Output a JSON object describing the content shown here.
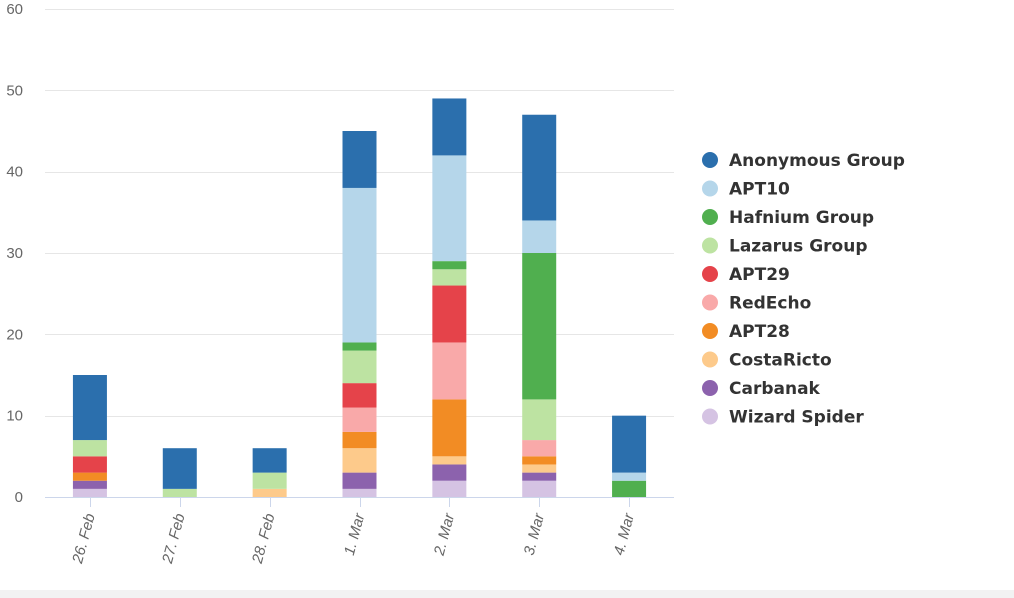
{
  "chart_data": {
    "type": "bar",
    "stacked": true,
    "categories": [
      "26. Feb",
      "27. Feb",
      "28. Feb",
      "1. Mar",
      "2. Mar",
      "3. Mar",
      "4. Mar"
    ],
    "ylim": [
      0,
      60
    ],
    "yticks": [
      0,
      10,
      20,
      30,
      40,
      50,
      60
    ],
    "grid": true,
    "legend_position": "right",
    "series": [
      {
        "name": "Wizard Spider",
        "color": "#d5c3e3",
        "values": [
          1,
          0,
          0,
          1,
          2,
          2,
          0
        ]
      },
      {
        "name": "Carbanak",
        "color": "#8c62ad",
        "values": [
          1,
          0,
          0,
          2,
          2,
          1,
          0
        ]
      },
      {
        "name": "CostaRicto",
        "color": "#fdca8b",
        "values": [
          0,
          0,
          1,
          3,
          1,
          1,
          0
        ]
      },
      {
        "name": "APT28",
        "color": "#f28c24",
        "values": [
          1,
          0,
          0,
          2,
          7,
          1,
          0
        ]
      },
      {
        "name": "RedEcho",
        "color": "#f9a9a9",
        "values": [
          0,
          0,
          0,
          3,
          7,
          2,
          0
        ]
      },
      {
        "name": "APT29",
        "color": "#e5434a",
        "values": [
          2,
          0,
          0,
          3,
          7,
          0,
          0
        ]
      },
      {
        "name": "Lazarus Group",
        "color": "#bde3a2",
        "values": [
          2,
          1,
          2,
          4,
          2,
          5,
          0
        ]
      },
      {
        "name": "Hafnium Group",
        "color": "#50af4f",
        "values": [
          0,
          0,
          0,
          1,
          1,
          18,
          2
        ]
      },
      {
        "name": "APT10",
        "color": "#b5d6ea",
        "values": [
          0,
          0,
          0,
          19,
          13,
          4,
          1
        ]
      },
      {
        "name": "Anonymous Group",
        "color": "#2b6fad",
        "values": [
          8,
          5,
          3,
          7,
          7,
          13,
          7
        ]
      }
    ],
    "legend_order": [
      "Anonymous Group",
      "APT10",
      "Hafnium Group",
      "Lazarus Group",
      "APT29",
      "RedEcho",
      "APT28",
      "CostaRicto",
      "Carbanak",
      "Wizard Spider"
    ]
  }
}
